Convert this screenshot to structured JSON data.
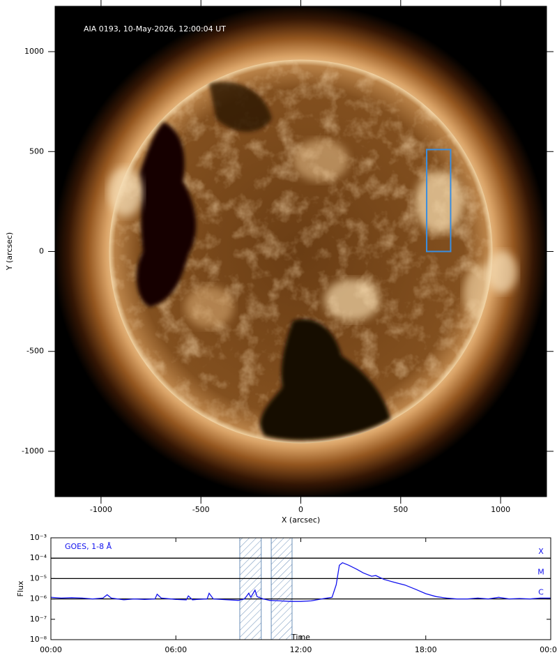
{
  "chart_data": [
    {
      "type": "image",
      "annotation": "AIA 0193, 10-May-2026, 12:00:04 UT",
      "x_label": "X (arcsec)",
      "y_label": "Y (arcsec)",
      "xlim": [
        -1230,
        1230
      ],
      "ylim": [
        -1227,
        1227
      ],
      "xticks": [
        -1000,
        -500,
        0,
        500,
        1000
      ],
      "yticks": [
        -1000,
        -500,
        0,
        500,
        1000
      ],
      "box": {
        "x": [
          630,
          750
        ],
        "y": [
          0,
          510
        ],
        "color": "#3a8ee0"
      }
    },
    {
      "type": "line",
      "x_label": "Time",
      "y_label": "Flux",
      "log_y": true,
      "xlim": [
        0,
        24
      ],
      "ylim": [
        1e-08,
        0.001
      ],
      "xticks": [
        {
          "value": 0,
          "label": "00:00"
        },
        {
          "value": 6,
          "label": "06:00"
        },
        {
          "value": 12,
          "label": "12:00"
        },
        {
          "value": 18,
          "label": "18:00"
        },
        {
          "value": 24,
          "label": "00:00"
        }
      ],
      "yticks": [
        {
          "value": 1e-08,
          "label": "10⁻⁸"
        },
        {
          "value": 1e-07,
          "label": "10⁻⁷"
        },
        {
          "value": 1e-06,
          "label": "10⁻⁶"
        },
        {
          "value": 1e-05,
          "label": "10⁻⁵"
        },
        {
          "value": 0.0001,
          "label": "10⁻⁴"
        },
        {
          "value": 0.001,
          "label": "10⁻³"
        }
      ],
      "class_lines": [
        {
          "value": 0.0001,
          "label": "X"
        },
        {
          "value": 1e-05,
          "label": "M"
        },
        {
          "value": 1e-06,
          "label": "C"
        }
      ],
      "shaded": [
        [
          9.07,
          10.1
        ],
        [
          10.58,
          11.58
        ]
      ],
      "series": [
        {
          "name": "GOES, 1-8 Å",
          "color": "#1010ee",
          "x": [
            0,
            0.5,
            1,
            1.5,
            2,
            2.5,
            2.7,
            2.9,
            3.5,
            4,
            4.5,
            5,
            5.1,
            5.3,
            6,
            6.5,
            6.6,
            6.8,
            7,
            7.5,
            7.6,
            7.8,
            8.5,
            9,
            9.3,
            9.5,
            9.6,
            9.8,
            9.9,
            10.2,
            10.5,
            11,
            11.5,
            12,
            12.5,
            13,
            13.5,
            13.7,
            13.85,
            14,
            14.3,
            14.7,
            15,
            15.4,
            15.6,
            16,
            16.5,
            17,
            17.5,
            18,
            18.5,
            19,
            19.5,
            20,
            20.5,
            21,
            21.5,
            22,
            22.5,
            23,
            23.5,
            24
          ],
          "values": [
            1.2e-06,
            1.1e-06,
            1.15e-06,
            1.1e-06,
            1e-06,
            1.1e-06,
            1.6e-06,
            1.1e-06,
            9e-07,
            1e-06,
            9.5e-07,
            1e-06,
            1.7e-06,
            1.1e-06,
            9.5e-07,
            9e-07,
            1.4e-06,
            9e-07,
            9.5e-07,
            1e-06,
            1.9e-06,
            1e-06,
            9e-07,
            8.5e-07,
            1e-06,
            1.9e-06,
            1.2e-06,
            2.7e-06,
            1.3e-06,
            1e-06,
            8.5e-07,
            8e-07,
            7.5e-07,
            7.5e-07,
            8e-07,
            1e-06,
            1.2e-06,
            5e-06,
            4.5e-05,
            6e-05,
            4.5e-05,
            2.8e-05,
            1.9e-05,
            1.3e-05,
            1.4e-05,
            9e-06,
            6.5e-06,
            4.8e-06,
            3e-06,
            1.8e-06,
            1.3e-06,
            1.1e-06,
            1e-06,
            1e-06,
            1.1e-06,
            1e-06,
            1.2e-06,
            1e-06,
            1.05e-06,
            1e-06,
            1.1e-06,
            1.1e-06
          ]
        }
      ]
    }
  ]
}
